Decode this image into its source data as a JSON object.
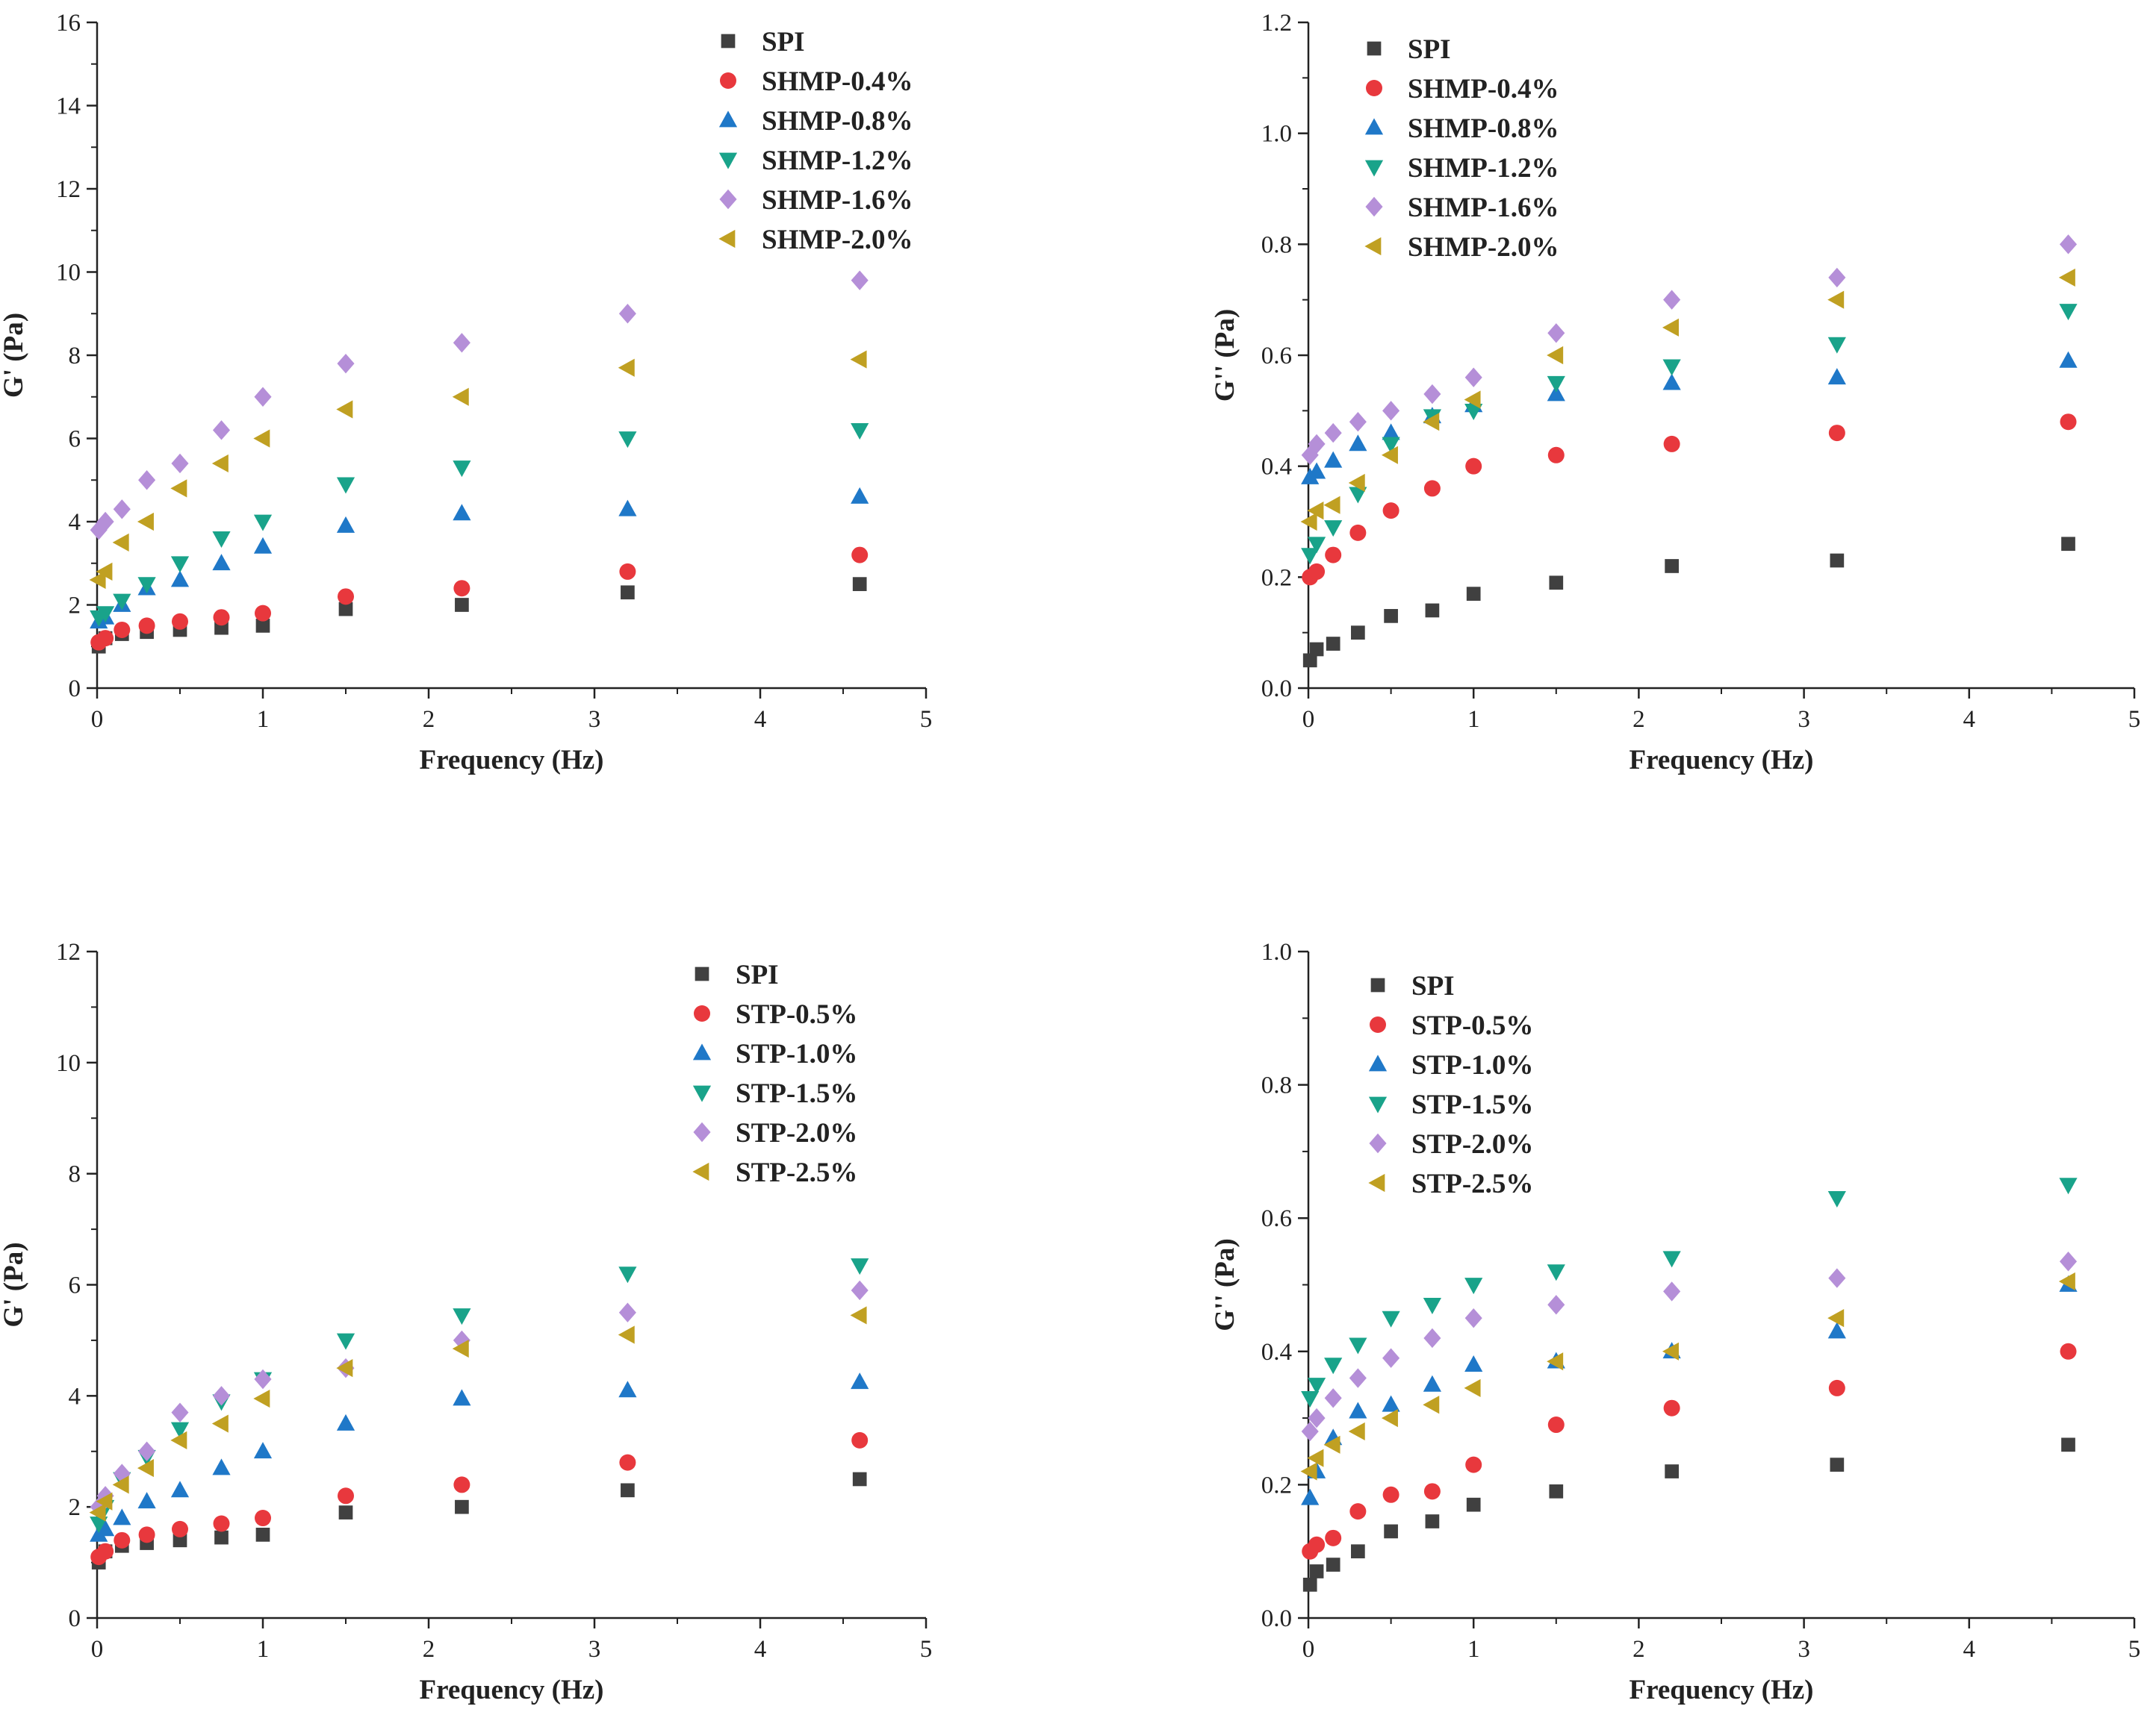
{
  "figure": {
    "colors": {
      "SPI": "#404040",
      "series1": "#e8383d",
      "series2": "#1f78c8",
      "series3": "#19a38a",
      "series4": "#b58fd8",
      "series5": "#c0a022"
    },
    "marker_shapes": [
      "square",
      "circle",
      "triangle-up",
      "triangle-down",
      "diamond",
      "triangle-left"
    ]
  },
  "chart_data": [
    {
      "type": "scatter",
      "panel": "top-left",
      "xlabel": "Frequency (Hz)",
      "ylabel": "G' (Pa)",
      "xlim": [
        0,
        5
      ],
      "ylim": [
        0,
        16
      ],
      "xticks": [
        "0",
        "1",
        "2",
        "3",
        "4",
        "5"
      ],
      "yticks": [
        "0",
        "2",
        "4",
        "6",
        "8",
        "10",
        "12",
        "14",
        "16"
      ],
      "legend_position": "top-right",
      "grid": false,
      "x": [
        0.01,
        0.05,
        0.15,
        0.3,
        0.5,
        0.75,
        1.0,
        1.5,
        2.2,
        3.2,
        4.6
      ],
      "series": [
        {
          "name": "SPI",
          "values": [
            1.0,
            1.2,
            1.3,
            1.35,
            1.4,
            1.45,
            1.5,
            1.9,
            2.0,
            2.3,
            2.5
          ]
        },
        {
          "name": "SHMP-0.4%",
          "values": [
            1.1,
            1.2,
            1.4,
            1.5,
            1.6,
            1.7,
            1.8,
            2.2,
            2.4,
            2.8,
            3.2
          ]
        },
        {
          "name": "SHMP-0.8%",
          "values": [
            1.6,
            1.7,
            2.0,
            2.4,
            2.6,
            3.0,
            3.4,
            3.9,
            4.2,
            4.3,
            4.6
          ]
        },
        {
          "name": "SHMP-1.2%",
          "values": [
            1.7,
            1.8,
            2.1,
            2.5,
            3.0,
            3.6,
            4.0,
            4.9,
            5.3,
            6.0,
            6.2
          ]
        },
        {
          "name": "SHMP-1.6%",
          "values": [
            3.8,
            4.0,
            4.3,
            5.0,
            5.4,
            6.2,
            7.0,
            7.8,
            8.3,
            9.0,
            9.8
          ]
        },
        {
          "name": "SHMP-2.0%",
          "values": [
            2.6,
            2.8,
            3.5,
            4.0,
            4.8,
            5.4,
            6.0,
            6.7,
            7.0,
            7.7,
            7.9
          ]
        }
      ]
    },
    {
      "type": "scatter",
      "panel": "top-right",
      "xlabel": "Frequency (Hz)",
      "ylabel": "G'' (Pa)",
      "xlim": [
        0,
        5
      ],
      "ylim": [
        0,
        1.2
      ],
      "xticks": [
        "0",
        "1",
        "2",
        "3",
        "4",
        "5"
      ],
      "yticks": [
        "0.0",
        "0.2",
        "0.4",
        "0.6",
        "0.8",
        "1.0",
        "1.2"
      ],
      "legend_position": "top-left",
      "grid": false,
      "x": [
        0.01,
        0.05,
        0.15,
        0.3,
        0.5,
        0.75,
        1.0,
        1.5,
        2.2,
        3.2,
        4.6
      ],
      "series": [
        {
          "name": "SPI",
          "values": [
            0.05,
            0.07,
            0.08,
            0.1,
            0.13,
            0.14,
            0.17,
            0.19,
            0.22,
            0.23,
            0.26
          ]
        },
        {
          "name": "SHMP-0.4%",
          "values": [
            0.2,
            0.21,
            0.24,
            0.28,
            0.32,
            0.36,
            0.4,
            0.42,
            0.44,
            0.46,
            0.48
          ]
        },
        {
          "name": "SHMP-0.8%",
          "values": [
            0.38,
            0.39,
            0.41,
            0.44,
            0.46,
            0.49,
            0.51,
            0.53,
            0.55,
            0.56,
            0.59
          ]
        },
        {
          "name": "SHMP-1.2%",
          "values": [
            0.24,
            0.26,
            0.29,
            0.35,
            0.44,
            0.49,
            0.5,
            0.55,
            0.58,
            0.62,
            0.68
          ]
        },
        {
          "name": "SHMP-1.6%",
          "values": [
            0.42,
            0.44,
            0.46,
            0.48,
            0.5,
            0.53,
            0.56,
            0.64,
            0.7,
            0.74,
            0.8
          ]
        },
        {
          "name": "SHMP-2.0%",
          "values": [
            0.3,
            0.32,
            0.33,
            0.37,
            0.42,
            0.48,
            0.52,
            0.6,
            0.65,
            0.7,
            0.74
          ]
        }
      ]
    },
    {
      "type": "scatter",
      "panel": "bottom-left",
      "xlabel": "Frequency (Hz)",
      "ylabel": "G' (Pa)",
      "xlim": [
        0,
        5
      ],
      "ylim": [
        0,
        12
      ],
      "xticks": [
        "0",
        "1",
        "2",
        "3",
        "4",
        "5"
      ],
      "yticks": [
        "0",
        "2",
        "4",
        "6",
        "8",
        "10",
        "12"
      ],
      "legend_position": "top-right",
      "grid": false,
      "x": [
        0.01,
        0.05,
        0.15,
        0.3,
        0.5,
        0.75,
        1.0,
        1.5,
        2.2,
        3.2,
        4.6
      ],
      "series": [
        {
          "name": "SPI",
          "values": [
            1.0,
            1.2,
            1.3,
            1.35,
            1.4,
            1.45,
            1.5,
            1.9,
            2.0,
            2.3,
            2.5
          ]
        },
        {
          "name": "STP-0.5%",
          "values": [
            1.1,
            1.2,
            1.4,
            1.5,
            1.6,
            1.7,
            1.8,
            2.2,
            2.4,
            2.8,
            3.2
          ]
        },
        {
          "name": "STP-1.0%",
          "values": [
            1.5,
            1.6,
            1.8,
            2.1,
            2.3,
            2.7,
            3.0,
            3.5,
            3.95,
            4.1,
            4.25
          ]
        },
        {
          "name": "STP-1.5%",
          "values": [
            1.7,
            2.0,
            2.5,
            2.9,
            3.4,
            3.9,
            4.3,
            5.0,
            5.45,
            6.2,
            6.35
          ]
        },
        {
          "name": "STP-2.0%",
          "values": [
            2.0,
            2.2,
            2.6,
            3.0,
            3.7,
            4.0,
            4.3,
            4.5,
            5.0,
            5.5,
            5.9
          ]
        },
        {
          "name": "STP-2.5%",
          "values": [
            1.9,
            2.1,
            2.4,
            2.7,
            3.2,
            3.5,
            3.95,
            4.5,
            4.85,
            5.1,
            5.45
          ]
        }
      ]
    },
    {
      "type": "scatter",
      "panel": "bottom-right",
      "xlabel": "Frequency (Hz)",
      "ylabel": "G'' (Pa)",
      "xlim": [
        0,
        5
      ],
      "ylim": [
        0,
        1.0
      ],
      "xticks": [
        "0",
        "1",
        "2",
        "3",
        "4",
        "5"
      ],
      "yticks": [
        "0.0",
        "0.2",
        "0.4",
        "0.6",
        "0.8",
        "1.0"
      ],
      "legend_position": "top-left",
      "grid": false,
      "x": [
        0.01,
        0.05,
        0.15,
        0.3,
        0.5,
        0.75,
        1.0,
        1.5,
        2.2,
        3.2,
        4.6
      ],
      "series": [
        {
          "name": "SPI",
          "values": [
            0.05,
            0.07,
            0.08,
            0.1,
            0.13,
            0.145,
            0.17,
            0.19,
            0.22,
            0.23,
            0.26
          ]
        },
        {
          "name": "STP-0.5%",
          "values": [
            0.1,
            0.11,
            0.12,
            0.16,
            0.185,
            0.19,
            0.23,
            0.29,
            0.315,
            0.345,
            0.4
          ]
        },
        {
          "name": "STP-1.0%",
          "values": [
            0.18,
            0.22,
            0.27,
            0.31,
            0.32,
            0.35,
            0.38,
            0.385,
            0.4,
            0.43,
            0.5
          ]
        },
        {
          "name": "STP-1.5%",
          "values": [
            0.33,
            0.35,
            0.38,
            0.41,
            0.45,
            0.47,
            0.5,
            0.52,
            0.54,
            0.63,
            0.65
          ]
        },
        {
          "name": "STP-2.0%",
          "values": [
            0.28,
            0.3,
            0.33,
            0.36,
            0.39,
            0.42,
            0.45,
            0.47,
            0.49,
            0.51,
            0.535
          ]
        },
        {
          "name": "STP-2.5%",
          "values": [
            0.22,
            0.24,
            0.26,
            0.28,
            0.3,
            0.32,
            0.345,
            0.385,
            0.4,
            0.45,
            0.505
          ]
        }
      ]
    }
  ]
}
